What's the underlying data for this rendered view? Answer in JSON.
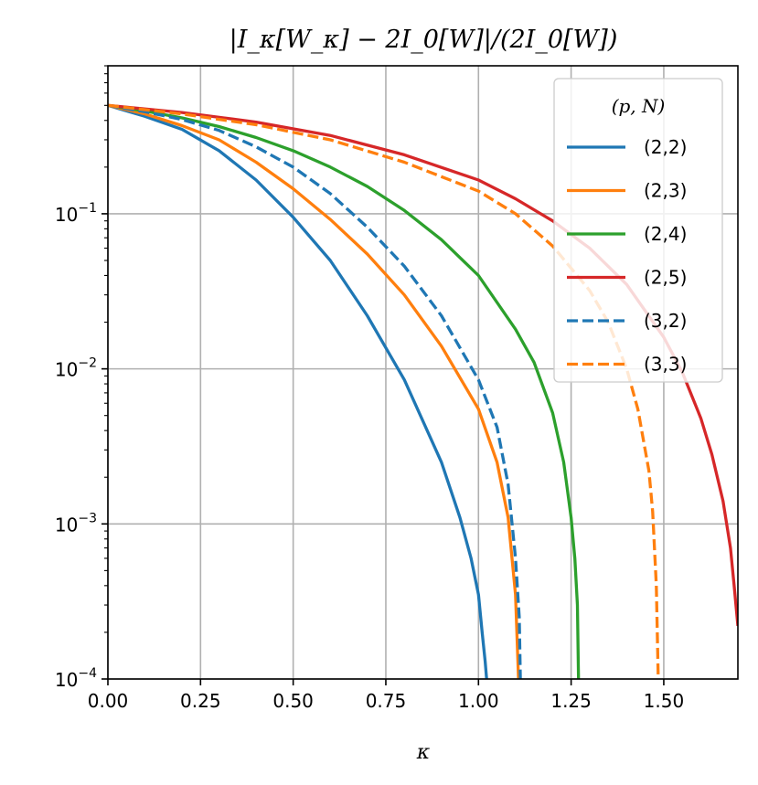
{
  "chart_data": {
    "type": "line",
    "title": "|I_κ[W_κ] − 2I_0[W]|/(2I_0[W])",
    "xlabel": "κ",
    "ylabel": "",
    "xlim": [
      0,
      1.7
    ],
    "ylim": [
      0.0001,
      0.9
    ],
    "yscale": "log",
    "grid": true,
    "xticks": [
      "0.00",
      "0.25",
      "0.50",
      "0.75",
      "1.00",
      "1.25",
      "1.50"
    ],
    "xtick_values": [
      0,
      0.25,
      0.5,
      0.75,
      1.0,
      1.25,
      1.5
    ],
    "yticks": [
      {
        "base": "10",
        "exp": "−4",
        "value": 0.0001
      },
      {
        "base": "10",
        "exp": "−3",
        "value": 0.001
      },
      {
        "base": "10",
        "exp": "−2",
        "value": 0.01
      },
      {
        "base": "10",
        "exp": "−1",
        "value": 0.1
      }
    ],
    "legend": {
      "title": "(p, N)",
      "location": "upper right"
    },
    "series": [
      {
        "name": "(2,2)",
        "color": "#1f77b4",
        "dash": "solid",
        "x": [
          0,
          0.1,
          0.2,
          0.3,
          0.4,
          0.5,
          0.6,
          0.7,
          0.8,
          0.9,
          0.95,
          0.98,
          1.0,
          1.01,
          1.018,
          1.022
        ],
        "y": [
          0.5,
          0.425,
          0.35,
          0.255,
          0.165,
          0.095,
          0.05,
          0.022,
          0.0085,
          0.0025,
          0.0011,
          0.0006,
          0.00035,
          0.0002,
          0.00013,
          0.0001
        ]
      },
      {
        "name": "(2,3)",
        "color": "#ff7f0e",
        "dash": "solid",
        "x": [
          0,
          0.1,
          0.2,
          0.3,
          0.4,
          0.5,
          0.6,
          0.7,
          0.8,
          0.9,
          1.0,
          1.05,
          1.08,
          1.1,
          1.108
        ],
        "y": [
          0.5,
          0.44,
          0.37,
          0.3,
          0.215,
          0.145,
          0.092,
          0.055,
          0.03,
          0.014,
          0.0055,
          0.0025,
          0.0011,
          0.00035,
          0.0001
        ]
      },
      {
        "name": "(2,4)",
        "color": "#2ca02c",
        "dash": "solid",
        "x": [
          0,
          0.1,
          0.2,
          0.3,
          0.4,
          0.5,
          0.6,
          0.7,
          0.8,
          0.9,
          1.0,
          1.1,
          1.15,
          1.2,
          1.23,
          1.25,
          1.26,
          1.267,
          1.27
        ],
        "y": [
          0.5,
          0.46,
          0.415,
          0.365,
          0.31,
          0.255,
          0.2,
          0.15,
          0.105,
          0.068,
          0.04,
          0.018,
          0.011,
          0.0052,
          0.0025,
          0.0011,
          0.0006,
          0.0003,
          0.0001
        ]
      },
      {
        "name": "(2,5)",
        "color": "#d62728",
        "dash": "solid",
        "x": [
          0,
          0.2,
          0.4,
          0.6,
          0.8,
          1.0,
          1.1,
          1.2,
          1.3,
          1.4,
          1.5,
          1.55,
          1.6,
          1.63,
          1.66,
          1.68,
          1.69,
          1.7
        ],
        "y": [
          0.5,
          0.45,
          0.39,
          0.32,
          0.24,
          0.165,
          0.125,
          0.09,
          0.06,
          0.035,
          0.016,
          0.0095,
          0.0048,
          0.0028,
          0.0014,
          0.0007,
          0.0004,
          0.00022
        ]
      },
      {
        "name": "(3,2)",
        "color": "#1f77b4",
        "dash": "dashed",
        "x": [
          0,
          0.1,
          0.2,
          0.3,
          0.4,
          0.5,
          0.6,
          0.7,
          0.8,
          0.9,
          1.0,
          1.05,
          1.08,
          1.1,
          1.11,
          1.113
        ],
        "y": [
          0.5,
          0.455,
          0.405,
          0.345,
          0.27,
          0.2,
          0.135,
          0.082,
          0.046,
          0.022,
          0.0085,
          0.0042,
          0.0018,
          0.0006,
          0.00025,
          0.0001
        ]
      },
      {
        "name": "(3,3)",
        "color": "#ff7f0e",
        "dash": "dashed",
        "x": [
          0,
          0.2,
          0.4,
          0.6,
          0.8,
          1.0,
          1.1,
          1.2,
          1.3,
          1.35,
          1.4,
          1.43,
          1.46,
          1.47,
          1.48,
          1.485
        ],
        "y": [
          0.5,
          0.44,
          0.375,
          0.3,
          0.215,
          0.14,
          0.1,
          0.062,
          0.032,
          0.02,
          0.01,
          0.0055,
          0.0022,
          0.0012,
          0.0004,
          0.0001
        ]
      }
    ]
  }
}
